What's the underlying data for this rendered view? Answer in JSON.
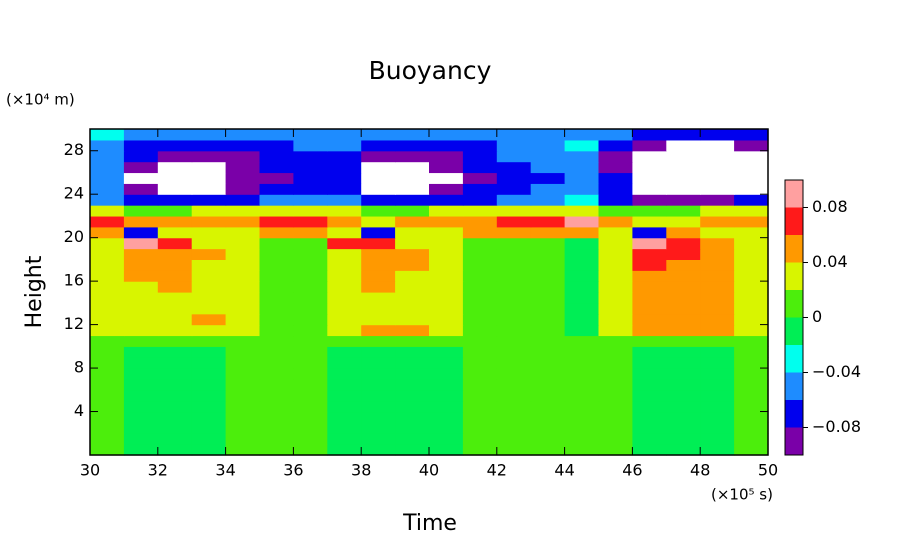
{
  "chart_data": {
    "type": "contour",
    "title": "Buoyancy",
    "xlabel": "Time",
    "ylabel": "Height",
    "x_unit": "(×10⁵ s)",
    "y_unit": "(×10⁴ m)",
    "xlim": [
      30,
      50
    ],
    "ylim": [
      0,
      30
    ],
    "xticks": [
      30,
      32,
      34,
      36,
      38,
      40,
      42,
      44,
      46,
      48,
      50
    ],
    "yticks": [
      4,
      8,
      12,
      16,
      20,
      24,
      28
    ],
    "levels": [
      -0.1,
      -0.08,
      -0.06,
      -0.04,
      -0.02,
      0,
      0.02,
      0.04,
      0.06,
      0.08,
      0.1
    ],
    "colors": [
      "#7a00a8",
      "#0000ee",
      "#1e8cff",
      "#00ffee",
      "#00ee55",
      "#4cee0c",
      "#d8f500",
      "#ff9900",
      "#ff1a1a",
      "#ffa0a0"
    ],
    "under_color": "#ffffff",
    "colorbar_ticks": [
      {
        "value": -0.08,
        "label": "−0.08"
      },
      {
        "value": -0.04,
        "label": "−0.04"
      },
      0,
      0.04,
      0.08
    ],
    "x": [
      30.5,
      31.5,
      32.5,
      33.5,
      34.5,
      35.5,
      36.5,
      37.5,
      38.5,
      39.5,
      40.5,
      41.5,
      42.5,
      43.5,
      44.5,
      45.5,
      46.5,
      47.5,
      48.5,
      49.5
    ],
    "y": [
      0.5,
      1.5,
      2.5,
      3.5,
      4.5,
      5.5,
      6.5,
      7.5,
      8.5,
      9.5,
      10.5,
      11.5,
      12.5,
      13.5,
      14.5,
      15.5,
      16.5,
      17.5,
      18.5,
      19.5,
      20.5,
      21.5,
      22.5,
      23.5,
      24.5,
      25.5,
      26.5,
      27.5,
      28.5,
      29.5
    ],
    "z": [
      [
        0.01,
        -0.01,
        -0.01,
        -0.01,
        0.01,
        0.01,
        0.01,
        -0.01,
        -0.01,
        -0.01,
        -0.01,
        0.01,
        0.01,
        0.01,
        0.01,
        0.01,
        -0.01,
        -0.01,
        -0.01,
        0.01
      ],
      [
        0.01,
        -0.01,
        -0.01,
        -0.01,
        0.01,
        0.01,
        0.01,
        -0.01,
        -0.01,
        -0.01,
        -0.01,
        0.01,
        0.01,
        0.01,
        0.01,
        0.01,
        -0.01,
        -0.01,
        -0.01,
        0.01
      ],
      [
        0.01,
        -0.01,
        -0.01,
        -0.01,
        0.01,
        0.01,
        0.01,
        -0.01,
        -0.01,
        -0.01,
        -0.01,
        0.01,
        0.01,
        0.01,
        0.01,
        0.01,
        -0.01,
        -0.01,
        -0.01,
        0.01
      ],
      [
        0.01,
        -0.01,
        -0.01,
        -0.01,
        0.01,
        0.01,
        0.01,
        -0.01,
        -0.01,
        -0.01,
        -0.01,
        0.01,
        0.01,
        0.01,
        0.01,
        0.01,
        -0.01,
        -0.01,
        -0.01,
        0.01
      ],
      [
        0.01,
        -0.01,
        -0.01,
        -0.01,
        0.01,
        0.01,
        0.01,
        -0.01,
        -0.01,
        -0.01,
        -0.01,
        0.01,
        0.01,
        0.01,
        0.01,
        0.01,
        -0.01,
        -0.01,
        -0.01,
        0.01
      ],
      [
        0.01,
        -0.01,
        -0.01,
        -0.01,
        0.01,
        0.01,
        0.01,
        -0.01,
        -0.01,
        -0.01,
        -0.01,
        0.01,
        0.01,
        0.01,
        0.01,
        0.01,
        -0.01,
        -0.01,
        -0.01,
        0.01
      ],
      [
        0.01,
        -0.01,
        -0.01,
        -0.01,
        0.01,
        0.01,
        0.01,
        -0.01,
        -0.01,
        -0.01,
        -0.01,
        0.01,
        0.01,
        0.01,
        0.01,
        0.01,
        -0.01,
        -0.01,
        -0.01,
        0.01
      ],
      [
        0.01,
        -0.01,
        -0.01,
        -0.01,
        0.01,
        0.01,
        0.01,
        -0.01,
        -0.01,
        -0.01,
        -0.01,
        0.01,
        0.01,
        0.01,
        0.01,
        0.01,
        -0.01,
        -0.01,
        -0.01,
        0.01
      ],
      [
        0.01,
        -0.01,
        -0.01,
        -0.01,
        0.01,
        0.01,
        0.01,
        -0.01,
        -0.01,
        -0.01,
        -0.01,
        0.01,
        0.01,
        0.01,
        0.01,
        0.01,
        -0.01,
        -0.01,
        -0.01,
        0.01
      ],
      [
        0.01,
        -0.01,
        -0.01,
        -0.01,
        0.01,
        0.01,
        0.01,
        -0.01,
        -0.01,
        -0.01,
        -0.01,
        0.01,
        0.01,
        0.01,
        0.01,
        0.01,
        -0.01,
        -0.01,
        -0.01,
        0.01
      ],
      [
        0.01,
        0.01,
        0.01,
        0.01,
        0.01,
        0.01,
        0.01,
        0.01,
        0.01,
        0.01,
        0.01,
        0.01,
        0.01,
        0.01,
        0.01,
        0.01,
        0.01,
        0.01,
        0.01,
        0.01
      ],
      [
        0.03,
        0.03,
        0.03,
        0.03,
        0.03,
        0.01,
        0.01,
        0.03,
        0.05,
        0.05,
        0.03,
        0.01,
        0.01,
        0.01,
        -0.01,
        0.03,
        0.05,
        0.05,
        0.05,
        0.03
      ],
      [
        0.03,
        0.03,
        0.03,
        0.05,
        0.03,
        0.01,
        0.01,
        0.03,
        0.03,
        0.03,
        0.03,
        0.01,
        0.01,
        0.01,
        -0.01,
        0.03,
        0.05,
        0.05,
        0.05,
        0.03
      ],
      [
        0.03,
        0.03,
        0.03,
        0.03,
        0.03,
        0.01,
        0.01,
        0.03,
        0.03,
        0.03,
        0.03,
        0.01,
        0.01,
        0.01,
        -0.01,
        0.03,
        0.05,
        0.05,
        0.05,
        0.03
      ],
      [
        0.03,
        0.03,
        0.03,
        0.03,
        0.03,
        0.01,
        0.01,
        0.03,
        0.03,
        0.03,
        0.03,
        0.01,
        0.01,
        0.01,
        -0.01,
        0.03,
        0.05,
        0.05,
        0.05,
        0.03
      ],
      [
        0.03,
        0.03,
        0.05,
        0.03,
        0.03,
        0.01,
        0.01,
        0.03,
        0.05,
        0.03,
        0.03,
        0.01,
        0.01,
        0.01,
        -0.01,
        0.03,
        0.05,
        0.05,
        0.05,
        0.03
      ],
      [
        0.03,
        0.05,
        0.05,
        0.03,
        0.03,
        0.01,
        0.01,
        0.03,
        0.05,
        0.03,
        0.03,
        0.01,
        0.01,
        0.01,
        -0.01,
        0.03,
        0.05,
        0.05,
        0.05,
        0.03
      ],
      [
        0.03,
        0.05,
        0.05,
        0.03,
        0.03,
        0.01,
        0.01,
        0.03,
        0.05,
        0.05,
        0.03,
        0.01,
        0.01,
        0.01,
        -0.01,
        0.03,
        0.07,
        0.05,
        0.05,
        0.03
      ],
      [
        0.03,
        0.05,
        0.05,
        0.05,
        0.03,
        0.01,
        0.01,
        0.03,
        0.05,
        0.05,
        0.03,
        0.01,
        0.01,
        0.01,
        -0.01,
        0.03,
        0.07,
        0.07,
        0.05,
        0.03
      ],
      [
        0.03,
        0.09,
        0.07,
        0.03,
        0.03,
        0.01,
        0.01,
        0.07,
        0.07,
        0.03,
        0.03,
        0.01,
        0.01,
        0.01,
        -0.01,
        0.03,
        0.09,
        0.07,
        0.05,
        0.03
      ],
      [
        0.05,
        -0.07,
        0.03,
        0.03,
        0.03,
        0.05,
        0.05,
        0.03,
        -0.07,
        0.03,
        0.03,
        0.05,
        0.05,
        0.05,
        0.05,
        0.03,
        -0.07,
        0.05,
        0.03,
        0.03
      ],
      [
        0.07,
        0.05,
        0.05,
        0.05,
        0.05,
        0.07,
        0.07,
        0.05,
        0.03,
        0.05,
        0.05,
        0.05,
        0.07,
        0.07,
        0.09,
        0.05,
        0.03,
        0.03,
        0.05,
        0.05
      ],
      [
        0.03,
        0.01,
        0.01,
        0.03,
        0.03,
        0.03,
        0.03,
        0.03,
        0.01,
        0.01,
        0.03,
        0.03,
        0.03,
        0.03,
        0.03,
        0.01,
        0.01,
        0.01,
        0.03,
        0.03
      ],
      [
        -0.05,
        -0.07,
        -0.07,
        -0.07,
        -0.07,
        -0.05,
        -0.05,
        -0.05,
        -0.07,
        -0.07,
        -0.07,
        -0.07,
        -0.05,
        -0.05,
        -0.03,
        -0.07,
        -0.09,
        -0.09,
        -0.09,
        -0.07
      ],
      [
        -0.05,
        -0.09,
        -0.12,
        -0.12,
        -0.09,
        -0.07,
        -0.07,
        -0.07,
        -0.12,
        -0.12,
        -0.09,
        -0.07,
        -0.07,
        -0.05,
        -0.05,
        -0.07,
        -0.12,
        -0.12,
        -0.12,
        -0.12
      ],
      [
        -0.05,
        -0.12,
        -0.12,
        -0.12,
        -0.09,
        -0.09,
        -0.07,
        -0.07,
        -0.12,
        -0.12,
        -0.12,
        -0.09,
        -0.07,
        -0.07,
        -0.05,
        -0.07,
        -0.12,
        -0.12,
        -0.12,
        -0.12
      ],
      [
        -0.05,
        -0.09,
        -0.12,
        -0.12,
        -0.09,
        -0.07,
        -0.07,
        -0.07,
        -0.12,
        -0.12,
        -0.09,
        -0.07,
        -0.07,
        -0.05,
        -0.05,
        -0.09,
        -0.12,
        -0.12,
        -0.12,
        -0.12
      ],
      [
        -0.05,
        -0.07,
        -0.09,
        -0.09,
        -0.09,
        -0.07,
        -0.07,
        -0.07,
        -0.09,
        -0.09,
        -0.09,
        -0.07,
        -0.05,
        -0.05,
        -0.05,
        -0.09,
        -0.12,
        -0.12,
        -0.12,
        -0.12
      ],
      [
        -0.05,
        -0.07,
        -0.07,
        -0.07,
        -0.07,
        -0.07,
        -0.05,
        -0.05,
        -0.07,
        -0.07,
        -0.07,
        -0.07,
        -0.05,
        -0.05,
        -0.03,
        -0.07,
        -0.09,
        -0.12,
        -0.12,
        -0.09
      ],
      [
        -0.03,
        -0.05,
        -0.05,
        -0.05,
        -0.05,
        -0.05,
        -0.05,
        -0.05,
        -0.05,
        -0.05,
        -0.05,
        -0.05,
        -0.05,
        -0.05,
        -0.05,
        -0.05,
        -0.07,
        -0.07,
        -0.07,
        -0.07
      ]
    ]
  }
}
